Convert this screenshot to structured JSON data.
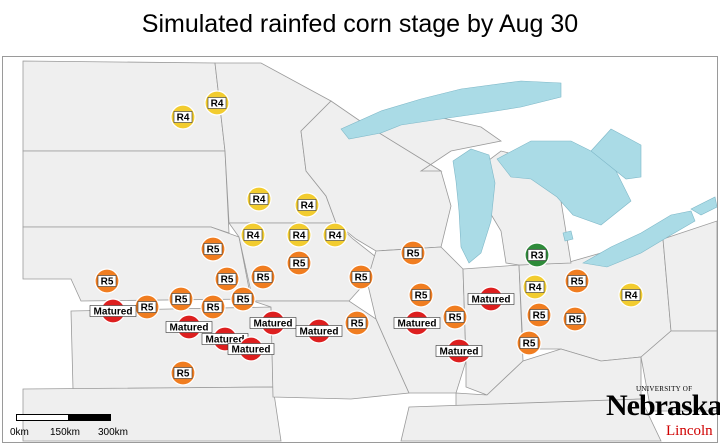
{
  "title": "Simulated rainfed corn stage by Aug 30",
  "colors": {
    "R3": "#2e8b3a",
    "R4": "#f2cc2f",
    "R5": "#f07d20",
    "Matured": "#dd1f1f",
    "lake": "#aadbe6",
    "state_fill": "#efefef",
    "state_border": "#9a9a9a"
  },
  "scale": {
    "labels": [
      "0km",
      "150km",
      "300km"
    ]
  },
  "logo": {
    "university": "UNIVERSITY OF",
    "name": "Nebraska",
    "campus": "Lincoln"
  },
  "markers": [
    {
      "label": "R4",
      "stage": "R4"
    },
    {
      "label": "R4",
      "stage": "R4"
    },
    {
      "label": "R4",
      "stage": "R4"
    },
    {
      "label": "R4",
      "stage": "R4"
    },
    {
      "label": "R4",
      "stage": "R4"
    },
    {
      "label": "R4",
      "stage": "R4"
    },
    {
      "label": "R4",
      "stage": "R4"
    },
    {
      "label": "R5",
      "stage": "R5"
    },
    {
      "label": "R5",
      "stage": "R5"
    },
    {
      "label": "R5",
      "stage": "R5"
    },
    {
      "label": "R5",
      "stage": "R5"
    },
    {
      "label": "R5",
      "stage": "R5"
    },
    {
      "label": "R5",
      "stage": "R5"
    },
    {
      "label": "R5",
      "stage": "R5"
    },
    {
      "label": "R5",
      "stage": "R5"
    },
    {
      "label": "R5",
      "stage": "R5"
    },
    {
      "label": "Matured",
      "stage": "Matured"
    },
    {
      "label": "R5",
      "stage": "R5"
    },
    {
      "label": "R5",
      "stage": "R5"
    },
    {
      "label": "R5",
      "stage": "R5"
    },
    {
      "label": "Matured",
      "stage": "Matured"
    },
    {
      "label": "Matured",
      "stage": "Matured"
    },
    {
      "label": "Matured",
      "stage": "Matured"
    },
    {
      "label": "Matured",
      "stage": "Matured"
    },
    {
      "label": "Matured",
      "stage": "Matured"
    },
    {
      "label": "Matured",
      "stage": "Matured"
    },
    {
      "label": "R5",
      "stage": "R5"
    },
    {
      "label": "R5",
      "stage": "R5"
    },
    {
      "label": "R5",
      "stage": "R5"
    },
    {
      "label": "Matured",
      "stage": "Matured"
    },
    {
      "label": "R5",
      "stage": "R5"
    },
    {
      "label": "Matured",
      "stage": "Matured"
    },
    {
      "label": "R5",
      "stage": "R5"
    },
    {
      "label": "R3",
      "stage": "R3"
    },
    {
      "label": "R4",
      "stage": "R4"
    },
    {
      "label": "R5",
      "stage": "R5"
    },
    {
      "label": "R5",
      "stage": "R5"
    },
    {
      "label": "R4",
      "stage": "R4"
    },
    {
      "label": "R4",
      "stage": "R4"
    },
    {
      "label": "R4",
      "stage": "R4"
    }
  ]
}
